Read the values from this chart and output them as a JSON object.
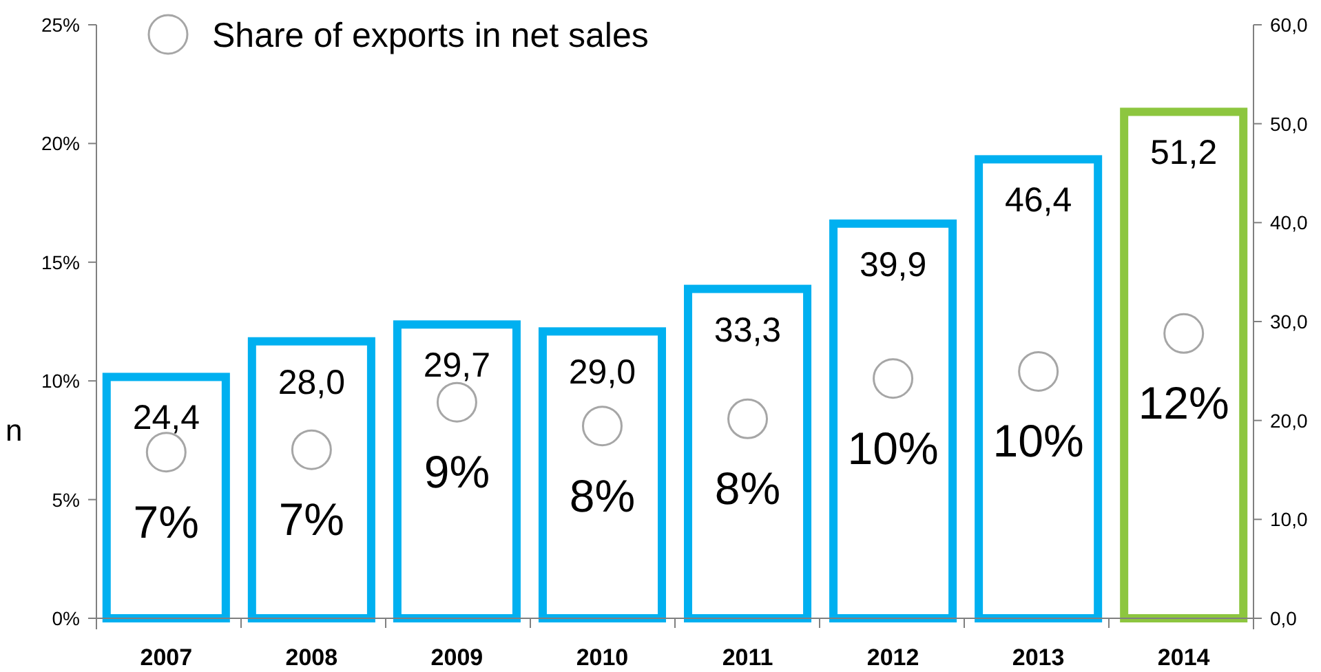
{
  "chart_data": {
    "type": "bar",
    "ylabel": "n",
    "categories": [
      "2007",
      "2008",
      "2009",
      "2010",
      "2011",
      "2012",
      "2013",
      "2014"
    ],
    "ylim": [
      0,
      25
    ],
    "yticks": [
      {
        "value": 0,
        "label": "0%"
      },
      {
        "value": 5,
        "label": "5%"
      },
      {
        "value": 10,
        "label": "10%"
      },
      {
        "value": 15,
        "label": "15%"
      },
      {
        "value": 20,
        "label": "20%"
      },
      {
        "value": 25,
        "label": "25%"
      }
    ],
    "y2lim": [
      0,
      60
    ],
    "y2ticks": [
      {
        "value": 0,
        "label": "0,0"
      },
      {
        "value": 10,
        "label": "10,0"
      },
      {
        "value": 20,
        "label": "20,0"
      },
      {
        "value": 30,
        "label": "30,0"
      },
      {
        "value": 40,
        "label": "40,0"
      },
      {
        "value": 50,
        "label": "50,0"
      },
      {
        "value": 60,
        "label": "60,0"
      }
    ],
    "legend": "top left",
    "grid": false,
    "series": [
      {
        "axis": "y2",
        "colors": [
          "#00b0f0",
          "#00b0f0",
          "#00b0f0",
          "#00b0f0",
          "#00b0f0",
          "#00b0f0",
          "#00b0f0",
          "#8dc63f"
        ],
        "values": [
          24.4,
          28.0,
          29.7,
          29.0,
          33.3,
          39.9,
          46.4,
          51.2
        ],
        "value_labels": [
          "24,4",
          "28,0",
          "29,7",
          "29,0",
          "33,3",
          "39,9",
          "46,4",
          "51,2"
        ]
      },
      {
        "type": "scatter",
        "name": "Share of exports in net sales",
        "color": "#a6a6a6",
        "marker": "circle",
        "values": [
          7.0,
          7.1,
          9.1,
          8.1,
          8.4,
          10.1,
          10.4,
          12.0
        ],
        "value_labels": [
          "7%",
          "7%",
          "9%",
          "8%",
          "8%",
          "10%",
          "10%",
          "12%"
        ]
      }
    ]
  }
}
